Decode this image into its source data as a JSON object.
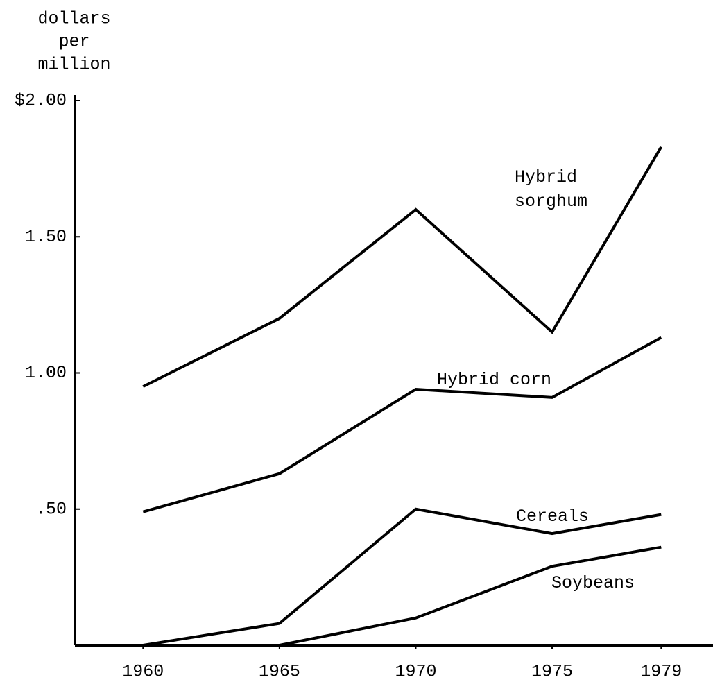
{
  "chart_data": {
    "type": "line",
    "ylabel": [
      "dollars",
      "per",
      "million"
    ],
    "x": [
      1960,
      1965,
      1970,
      1975,
      1979
    ],
    "xlim": [
      1957.5,
      1980.9
    ],
    "xticks": [
      1960,
      1965,
      1970,
      1975,
      1979
    ],
    "ylim": [
      0,
      2
    ],
    "yticks": [
      {
        "value": 0.5,
        "label": ".50"
      },
      {
        "value": 1,
        "label": "1.00"
      },
      {
        "value": 1.5,
        "label": "1.50"
      },
      {
        "value": 2,
        "label": "$2.00"
      }
    ],
    "grid": false,
    "series": [
      {
        "name": "Hybrid sorghum",
        "color": "#000000",
        "values": [
          0.95,
          1.2,
          1.6,
          1.15,
          1.83
        ]
      },
      {
        "name": "Hybrid corn",
        "color": "#000000",
        "values": [
          0.49,
          0.63,
          0.94,
          0.91,
          1.13
        ]
      },
      {
        "name": "Cereals",
        "color": "#000000",
        "values": [
          0,
          0.08,
          0.5,
          0.41,
          0.48
        ]
      },
      {
        "name": "Soybeans",
        "color": "#000000",
        "values": [
          null,
          0,
          0.1,
          0.29,
          0.36
        ]
      }
    ]
  }
}
